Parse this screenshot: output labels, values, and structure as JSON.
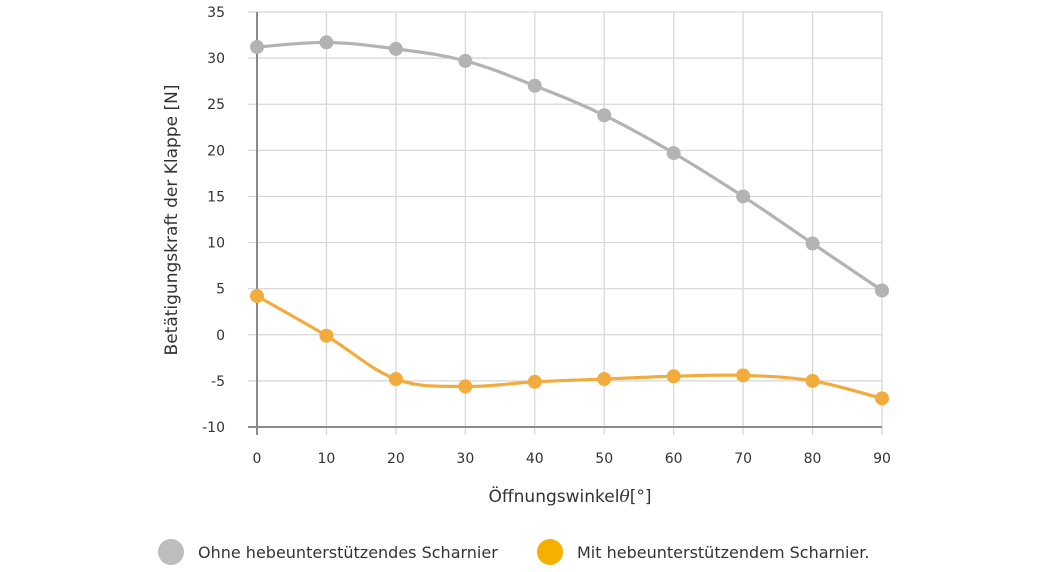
{
  "chart_data": {
    "type": "line",
    "xlabel_main": "Öffnungswinkel",
    "xlabel_symbol": "θ",
    "xlabel_unit": "[°]",
    "ylabel": "Betätigungskraft der Klappe [N]",
    "x": [
      0,
      10,
      20,
      30,
      40,
      50,
      60,
      70,
      80,
      90
    ],
    "xlim": [
      0,
      90
    ],
    "ylim": [
      -10,
      35
    ],
    "x_ticks": [
      "0",
      "10",
      "20",
      "30",
      "40",
      "50",
      "60",
      "70",
      "80",
      "90"
    ],
    "y_ticks": [
      "35",
      "30",
      "25",
      "20",
      "15",
      "10",
      "5",
      "0",
      "-5",
      "-10"
    ],
    "grid": true,
    "legend_position": "bottom",
    "series": [
      {
        "name": "Ohne hebeunterstützendes Scharnier",
        "color": "#b3b3b3",
        "values": [
          31.2,
          31.7,
          31.0,
          29.7,
          27.0,
          23.8,
          19.7,
          15.0,
          9.9,
          4.8
        ]
      },
      {
        "name": "Mit hebeunterstützendem Scharnier.",
        "color": "#f2ac3d",
        "values": [
          4.2,
          -0.1,
          -4.8,
          -5.6,
          -5.1,
          -4.8,
          -4.5,
          -4.4,
          -5.0,
          -6.9
        ]
      }
    ]
  },
  "legend": {
    "items": [
      {
        "label": "Ohne hebeunterstützendes Scharnier",
        "color": "#bdbdbd"
      },
      {
        "label": "Mit hebeunterstützendem Scharnier.",
        "color": "#f5b000"
      }
    ]
  }
}
